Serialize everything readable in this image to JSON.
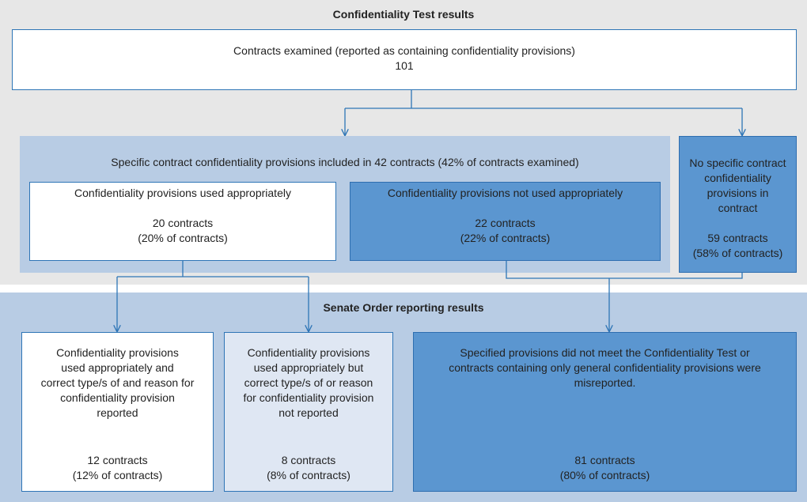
{
  "test": {
    "title": "Confidentiality Test results",
    "examined": {
      "label": "Contracts examined (reported as containing confidentiality provisions)",
      "count": 101
    },
    "specific": {
      "label": "Specific contract confidentiality provisions included in 42 contracts (42% of contracts examined)",
      "appropriate": {
        "label": "Confidentiality provisions used appropriately",
        "count": "20 contracts",
        "share": "(20% of contracts)"
      },
      "not_appropriate": {
        "label": "Confidentiality provisions not used appropriately",
        "count": "22 contracts",
        "share": "(22% of contracts)"
      }
    },
    "no_specific": {
      "lines": [
        "No specific contract",
        "confidentiality",
        "provisions in",
        "contract"
      ],
      "count": "59 contracts",
      "share": "(58% of contracts)"
    }
  },
  "senate": {
    "title": "Senate Order reporting results",
    "reported": {
      "lines": [
        "Confidentiality provisions",
        "used appropriately and",
        "correct type/s of and reason for",
        "confidentiality provision",
        "reported"
      ],
      "count": "12 contracts",
      "share": "(12% of contracts)"
    },
    "not_reported": {
      "lines": [
        "Confidentiality provisions",
        "used appropriately but",
        "correct type/s of or reason",
        "for confidentiality provision",
        "not reported"
      ],
      "count": "8 contracts",
      "share": "(8% of contracts)"
    },
    "misreported": {
      "lines": [
        "Specified provisions did not meet the Confidentiality Test or",
        "contracts containing only general confidentiality provisions were",
        "misreported."
      ],
      "count": "81 contracts",
      "share": "(80% of contracts)"
    }
  }
}
